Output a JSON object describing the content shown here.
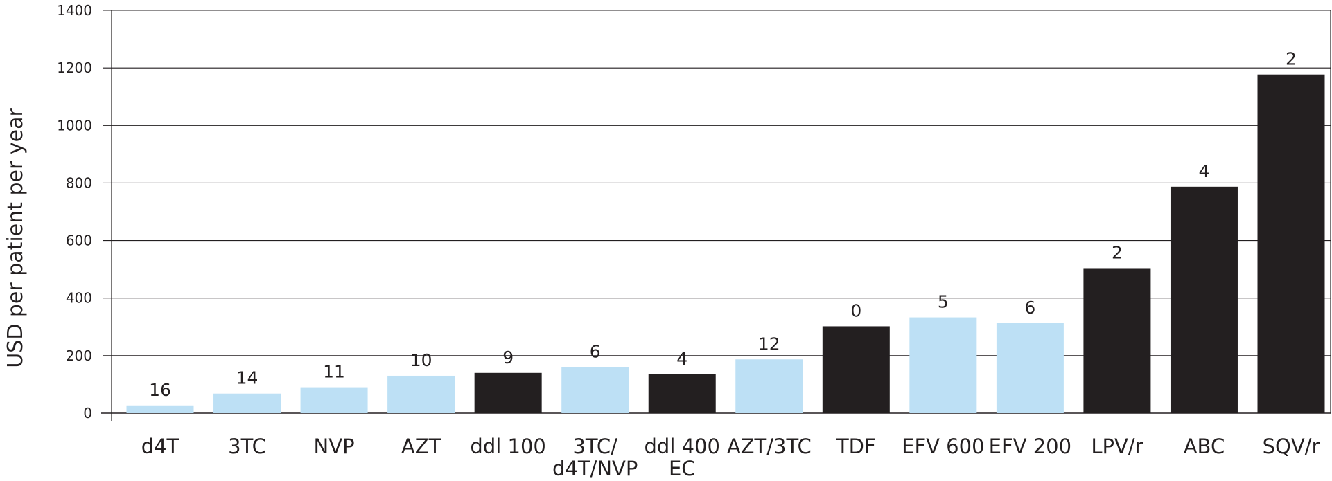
{
  "chart_data": {
    "type": "bar",
    "title": "",
    "xlabel": "",
    "ylabel": "USD per patient per year",
    "ylim": [
      0,
      1400
    ],
    "yticks": [
      0,
      200,
      400,
      600,
      800,
      1000,
      1200,
      1400
    ],
    "grid": true,
    "categories": [
      [
        "d4T"
      ],
      [
        "3TC"
      ],
      [
        "NVP"
      ],
      [
        "AZT"
      ],
      [
        "ddl 100"
      ],
      [
        "3TC/",
        "d4T/NVP"
      ],
      [
        "ddl 400",
        "EC"
      ],
      [
        "AZT/3TC"
      ],
      [
        "TDF"
      ],
      [
        "EFV 600"
      ],
      [
        "EFV 200"
      ],
      [
        "LPV/r"
      ],
      [
        "ABC"
      ],
      [
        "SQV/r"
      ]
    ],
    "values": [
      27,
      68,
      90,
      130,
      140,
      160,
      135,
      187,
      302,
      333,
      313,
      504,
      787,
      1177
    ],
    "bar_labels": [
      "16",
      "14",
      "11",
      "10",
      "9",
      "6",
      "4",
      "12",
      "0",
      "5",
      "6",
      "2",
      "4",
      "2"
    ],
    "bar_colors": [
      "#bde0f5",
      "#bde0f5",
      "#bde0f5",
      "#bde0f5",
      "#231f20",
      "#bde0f5",
      "#231f20",
      "#bde0f5",
      "#231f20",
      "#bde0f5",
      "#bde0f5",
      "#231f20",
      "#231f20",
      "#231f20"
    ],
    "colors": {
      "light_bar": "#bde0f5",
      "dark_bar": "#231f20",
      "grid": "#231f20"
    }
  }
}
